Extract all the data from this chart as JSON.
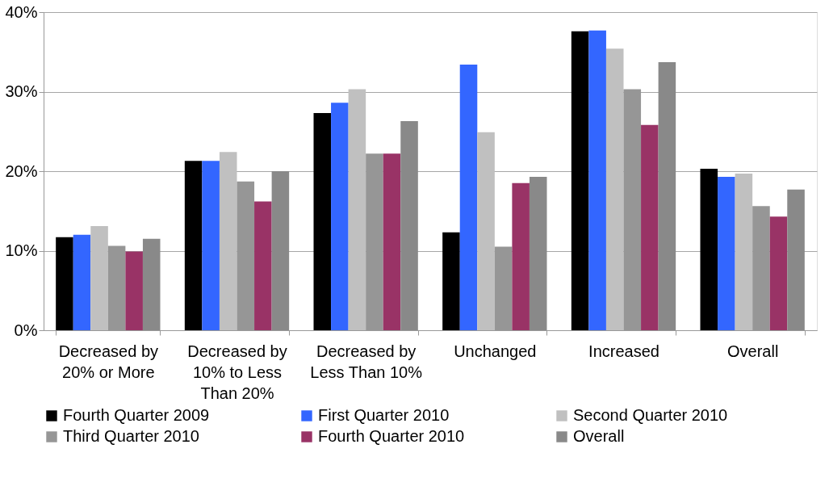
{
  "chart_data": {
    "type": "bar",
    "categories": [
      "Decreased by 20% or More",
      "Decreased by 10% to Less Than 20%",
      "Decreased by Less Than 10%",
      "Unchanged",
      "Increased",
      "Overall"
    ],
    "series": [
      {
        "name": "Fourth Quarter 2009",
        "color": "#000000",
        "values": [
          11.7,
          21.3,
          27.3,
          12.3,
          37.6,
          20.3
        ]
      },
      {
        "name": "First Quarter 2010",
        "color": "#3366ff",
        "values": [
          12.0,
          21.3,
          28.6,
          33.4,
          37.7,
          19.3
        ]
      },
      {
        "name": "Second Quarter 2010",
        "color": "#c0c0c0",
        "values": [
          13.1,
          22.4,
          30.3,
          24.9,
          35.4,
          19.7
        ]
      },
      {
        "name": "Third Quarter 2010",
        "color": "#969696",
        "values": [
          10.6,
          18.7,
          22.2,
          10.5,
          30.3,
          15.6
        ]
      },
      {
        "name": "Fourth Quarter 2010",
        "color": "#993366",
        "values": [
          9.9,
          16.2,
          22.2,
          18.5,
          25.8,
          14.3
        ]
      },
      {
        "name": "Overall",
        "color": "#898989",
        "values": [
          11.5,
          20.0,
          26.3,
          19.3,
          33.7,
          17.7
        ]
      }
    ],
    "ylim": [
      0,
      40
    ],
    "yticks": [
      {
        "value": 0,
        "label": "0%"
      },
      {
        "value": 10,
        "label": "10%"
      },
      {
        "value": 20,
        "label": "20%"
      },
      {
        "value": 30,
        "label": "30%"
      },
      {
        "value": 40,
        "label": "40%"
      }
    ],
    "grid": "y",
    "legend": "bottom"
  }
}
